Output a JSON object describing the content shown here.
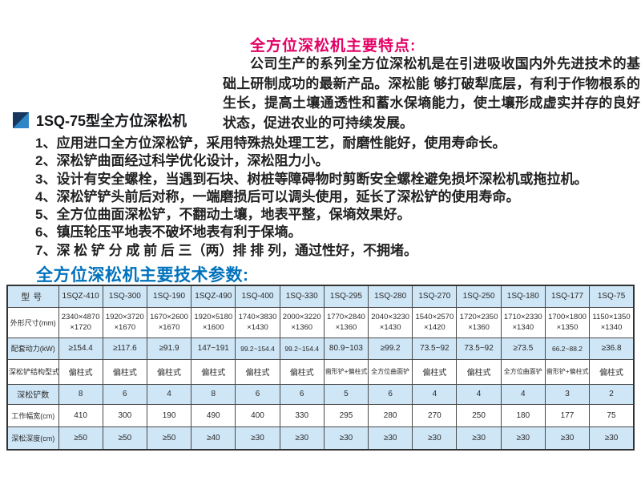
{
  "colors": {
    "title_red": "#e40064",
    "caption_blue": "#0072bd",
    "table_row_blue": "#cfe6f6",
    "icon_dark_blue": "#17375e",
    "icon_light_blue": "#2e86c6"
  },
  "features_section": {
    "title": "全方位深松机主要特点:",
    "intro": "公司生产的系列全方位深松机是在引进吸收国内外先进技术的基础上研制成功的最新产品。深松能 够打破犁底层，有利于作物根系的生长，提高土壤通透性和蓄水保墒能力，使土壤形成虚实并存的良好状态，促进农业的可持续发展。"
  },
  "product": {
    "heading": "1SQ-75型全方位深松机",
    "icon": "k-logo-icon"
  },
  "features": [
    "1、应用进口全方位深松铲，采用特殊热处理工艺，耐磨性能好，使用寿命长。",
    "2、深松铲曲面经过科学优化设计，深松阻力小。",
    "3、设计有安全螺栓，当遇到石块、树桩等障碍物时剪断安全螺栓避免损坏深松机或拖拉机。",
    "4、深松铲铲头前后对称，一端磨损后可以调头使用，延长了深松铲的使用寿命。",
    "5、全方位曲面深松铲，不翻动土壤，地表平整，保墒效果好。",
    "6、镇压轮压平地表不破坏地表有利于保墒。",
    "7、深 松 铲 分 成 前 后 三（两）排 排 列，通过性好，不拥堵。"
  ],
  "params_section": {
    "caption": "全方位深松机主要技术参数:",
    "table": {
      "header": [
        "型号",
        "1SQZ-410",
        "1SQ-300",
        "1SQ-190",
        "1SQZ-490",
        "1SQ-400",
        "1SQ-330",
        "1SQ-295",
        "1SQ-280",
        "1SQ-270",
        "1SQ-250",
        "1SQ-180",
        "1SQ-177",
        "1SQ-75"
      ],
      "rows": [
        {
          "label": "外形尺寸(mm)",
          "values": [
            "2340×4870×1720",
            "1920×3720×1670",
            "1670×2600×1670",
            "1920×5180×1600",
            "1740×3830×1430",
            "2000×3220×1360",
            "1770×2840×1360",
            "2040×3230×1430",
            "1540×2570×1420",
            "1720×2350×1360",
            "1710×2330×1340",
            "1700×1800×1350",
            "1150×1350×1340"
          ]
        },
        {
          "label": "配套动力(kW)",
          "values": [
            "≥154.4",
            "≥117.6",
            "≥91.9",
            "147~191",
            "99.2~154.4",
            "99.2~154.4",
            "80.9~103",
            "≥99.2",
            "73.5~92",
            "73.5~92",
            "≥73.5",
            "66.2~88.2",
            "≥36.8"
          ]
        },
        {
          "label": "深松铲结构型式",
          "values": [
            "偏柱式",
            "偏柱式",
            "偏柱式",
            "偏柱式",
            "偏柱式",
            "偏柱式",
            "凿形铲+偏柱式",
            "全方位曲面铲",
            "偏柱式",
            "偏柱式",
            "全方位曲面铲",
            "凿形铲+偏柱式",
            "偏柱式"
          ]
        },
        {
          "label": "深松铲数",
          "values": [
            "8",
            "6",
            "4",
            "8",
            "6",
            "6",
            "5",
            "6",
            "4",
            "4",
            "4",
            "3",
            "2"
          ]
        },
        {
          "label": "工作幅宽(cm)",
          "values": [
            "410",
            "300",
            "190",
            "490",
            "400",
            "330",
            "295",
            "280",
            "270",
            "250",
            "180",
            "177",
            "75"
          ]
        },
        {
          "label": "深松深度(cm)",
          "values": [
            "≥50",
            "≥50",
            "≥50",
            "≥40",
            "≥30",
            "≥30",
            "≥30",
            "≥30",
            "≥30",
            "≥30",
            "≥30",
            "≥30",
            "≥30"
          ]
        }
      ]
    }
  }
}
